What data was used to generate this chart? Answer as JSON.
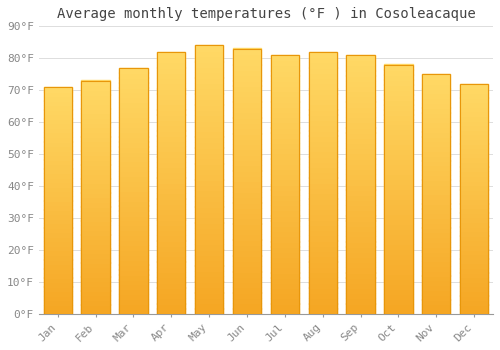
{
  "title": "Average monthly temperatures (°F ) in Cosoleacaque",
  "months": [
    "Jan",
    "Feb",
    "Mar",
    "Apr",
    "May",
    "Jun",
    "Jul",
    "Aug",
    "Sep",
    "Oct",
    "Nov",
    "Dec"
  ],
  "values": [
    71,
    73,
    77,
    82,
    84,
    83,
    81,
    82,
    81,
    78,
    75,
    72
  ],
  "bar_color_top": "#FFD966",
  "bar_color_bottom": "#F5A623",
  "bar_edge_color": "#E8960A",
  "ylim": [
    0,
    90
  ],
  "yticks": [
    0,
    10,
    20,
    30,
    40,
    50,
    60,
    70,
    80,
    90
  ],
  "ytick_labels": [
    "0°F",
    "10°F",
    "20°F",
    "30°F",
    "40°F",
    "50°F",
    "60°F",
    "70°F",
    "80°F",
    "90°F"
  ],
  "background_color": "#FFFFFF",
  "grid_color": "#DDDDDD",
  "title_fontsize": 10,
  "tick_fontsize": 8,
  "font_family": "monospace",
  "tick_color": "#888888",
  "bar_width": 0.75
}
